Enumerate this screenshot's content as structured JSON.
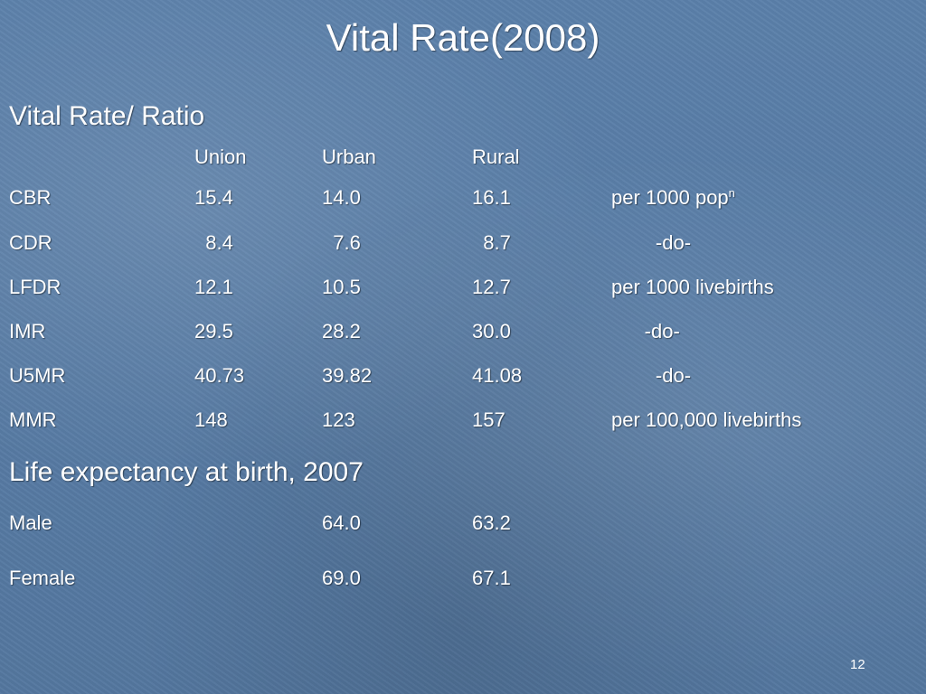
{
  "slide": {
    "title": "Vital Rate(2008)",
    "section1_heading": "Vital Rate/ Ratio",
    "columns": [
      "Union",
      "Urban",
      "Rural"
    ],
    "rows": [
      {
        "label": "CBR",
        "union": "15.4",
        "urban": "14.0",
        "rural": "16.1",
        "unit": "per 1000 pop",
        "unit_sup": "n"
      },
      {
        "label": "CDR",
        "union": "  8.4",
        "urban": "  7.6",
        "rural": "  8.7",
        "unit": "        -do-"
      },
      {
        "label": "LFDR",
        "union": "12.1",
        "urban": "10.5",
        "rural": "12.7",
        "unit": "per 1000 livebirths"
      },
      {
        "label": "IMR",
        "union": "29.5",
        "urban": "28.2",
        "rural": "30.0",
        "unit": "      -do-"
      },
      {
        "label": "U5MR",
        "union": "40.73",
        "urban": "39.82",
        "rural": "41.08",
        "unit": "        -do-"
      },
      {
        "label": "MMR",
        "union": "148",
        "urban": "123",
        "rural": "157",
        "unit": "per 100,000 livebirths"
      }
    ],
    "section2_heading": "Life expectancy at birth, 2007",
    "life_rows": [
      {
        "label": "Male",
        "urban": "64.0",
        "rural": "63.2"
      },
      {
        "label": "Female",
        "urban": "69.0",
        "rural": "67.1"
      }
    ],
    "page_number": "12"
  }
}
